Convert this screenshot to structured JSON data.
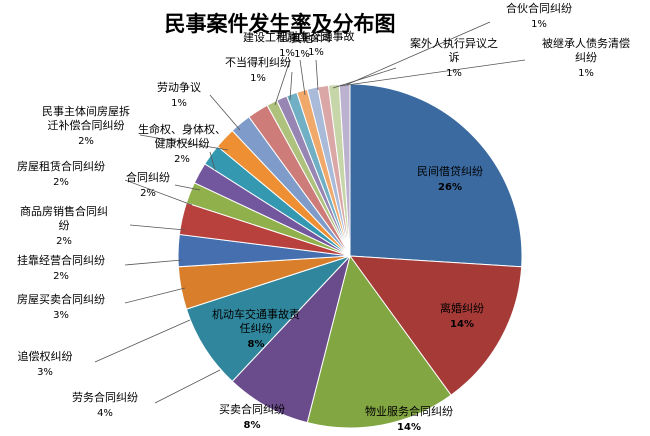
{
  "chart_data": {
    "type": "pie",
    "title": "民事案件发生率及分布图",
    "slices": [
      {
        "label": "民间借贷纠纷",
        "value": 26,
        "pct_label": "26%",
        "color": "#3a6aa0"
      },
      {
        "label": "离婚纠纷",
        "value": 14,
        "pct_label": "14%",
        "color": "#a63a37"
      },
      {
        "label": "物业服务合同纠纷",
        "value": 14,
        "pct_label": "14%",
        "color": "#82a642"
      },
      {
        "label": "买卖合同纠纷",
        "value": 8,
        "pct_label": "8%",
        "color": "#6a4c8c"
      },
      {
        "label": "机动车交通事故责任纠纷",
        "value": 8,
        "pct_label": "8%",
        "color": "#30879d"
      },
      {
        "label": "劳务合同纠纷",
        "value": 4,
        "pct_label": "4%",
        "color": "#d97e2b"
      },
      {
        "label": "追偿权纠纷",
        "value": 3,
        "pct_label": "3%",
        "color": "#466fb0"
      },
      {
        "label": "房屋买卖合同纠纷",
        "value": 3,
        "pct_label": "3%",
        "color": "#b9413d"
      },
      {
        "label": "挂靠经营合同纠纷",
        "value": 2,
        "pct_label": "2%",
        "color": "#8fb04a"
      },
      {
        "label": "商品房销售合同纠纷",
        "value": 2,
        "pct_label": "2%",
        "color": "#73579e"
      },
      {
        "label": "房屋租赁合同纠纷",
        "value": 2,
        "pct_label": "2%",
        "color": "#3598b1"
      },
      {
        "label": "合同纠纷",
        "value": 2,
        "pct_label": "2%",
        "color": "#ef8f33"
      },
      {
        "label": "生命权、身体权、健康权纠纷",
        "value": 2,
        "pct_label": "2%",
        "color": "#7f9bc9"
      },
      {
        "label": "民事主体间房屋拆迁补偿合同纠纷",
        "value": 2,
        "pct_label": "2%",
        "color": "#cd7c79"
      },
      {
        "label": "劳动争议",
        "value": 1,
        "pct_label": "1%",
        "color": "#aec27e"
      },
      {
        "label": "建设工程施工合同纠纷",
        "value": 1,
        "pct_label": "1%",
        "color": "#9786b3"
      },
      {
        "label": "不当得利纠纷",
        "value": 1,
        "pct_label": "1%",
        "color": "#71b0c4"
      },
      {
        "label": "其他",
        "value": 1,
        "pct_label": "1%",
        "color": "#f0a86b"
      },
      {
        "label": "机动车交通事故",
        "value": 1,
        "pct_label": "1%",
        "color": "#a9bbd9"
      },
      {
        "label": "案外人执行异议之诉",
        "value": 1,
        "pct_label": "1%",
        "color": "#dba7a6"
      },
      {
        "label": "被继承人债务清偿纠纷",
        "value": 1,
        "pct_label": "1%",
        "color": "#c6d6a8"
      },
      {
        "label": "合伙合同纠纷",
        "value": 1,
        "pct_label": "1%",
        "color": "#bcb1cf"
      }
    ]
  }
}
